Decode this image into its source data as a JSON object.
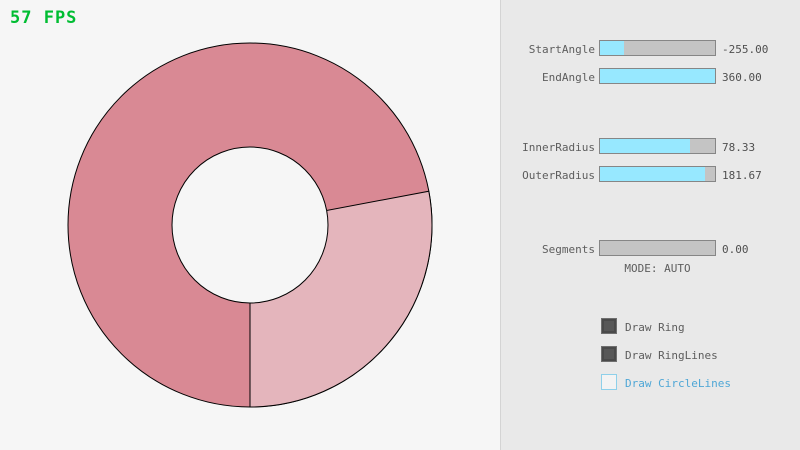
{
  "fps_counter": "57 FPS",
  "colors": {
    "fps_green": "#00bd32",
    "ring_overlap": "#d98994",
    "ring_single": "#e4b5bc",
    "ring_outline": "#000000",
    "canvas_bg": "#f6f6f6",
    "slider_fill": "#97e8ff",
    "accent_blue": "#4fa7d6"
  },
  "ring": {
    "start_angle": -255.0,
    "end_angle": 360.0,
    "inner_radius": 78.33,
    "outer_radius": 181.67,
    "segments": 0
  },
  "panel": {
    "sliders": [
      {
        "label": "StartAngle",
        "value": "-255.00",
        "fill_pct": 21
      },
      {
        "label": "EndAngle",
        "value": "360.00",
        "fill_pct": 100
      },
      {
        "label": "InnerRadius",
        "value": "78.33",
        "fill_pct": 78
      },
      {
        "label": "OuterRadius",
        "value": "181.67",
        "fill_pct": 91
      },
      {
        "label": "Segments",
        "value": "0.00",
        "fill_pct": 0
      }
    ],
    "mode_label": "MODE: AUTO",
    "checkboxes": [
      {
        "label": "Draw Ring",
        "checked": true
      },
      {
        "label": "Draw RingLines",
        "checked": true
      },
      {
        "label": "Draw CircleLines",
        "checked": false
      }
    ]
  }
}
